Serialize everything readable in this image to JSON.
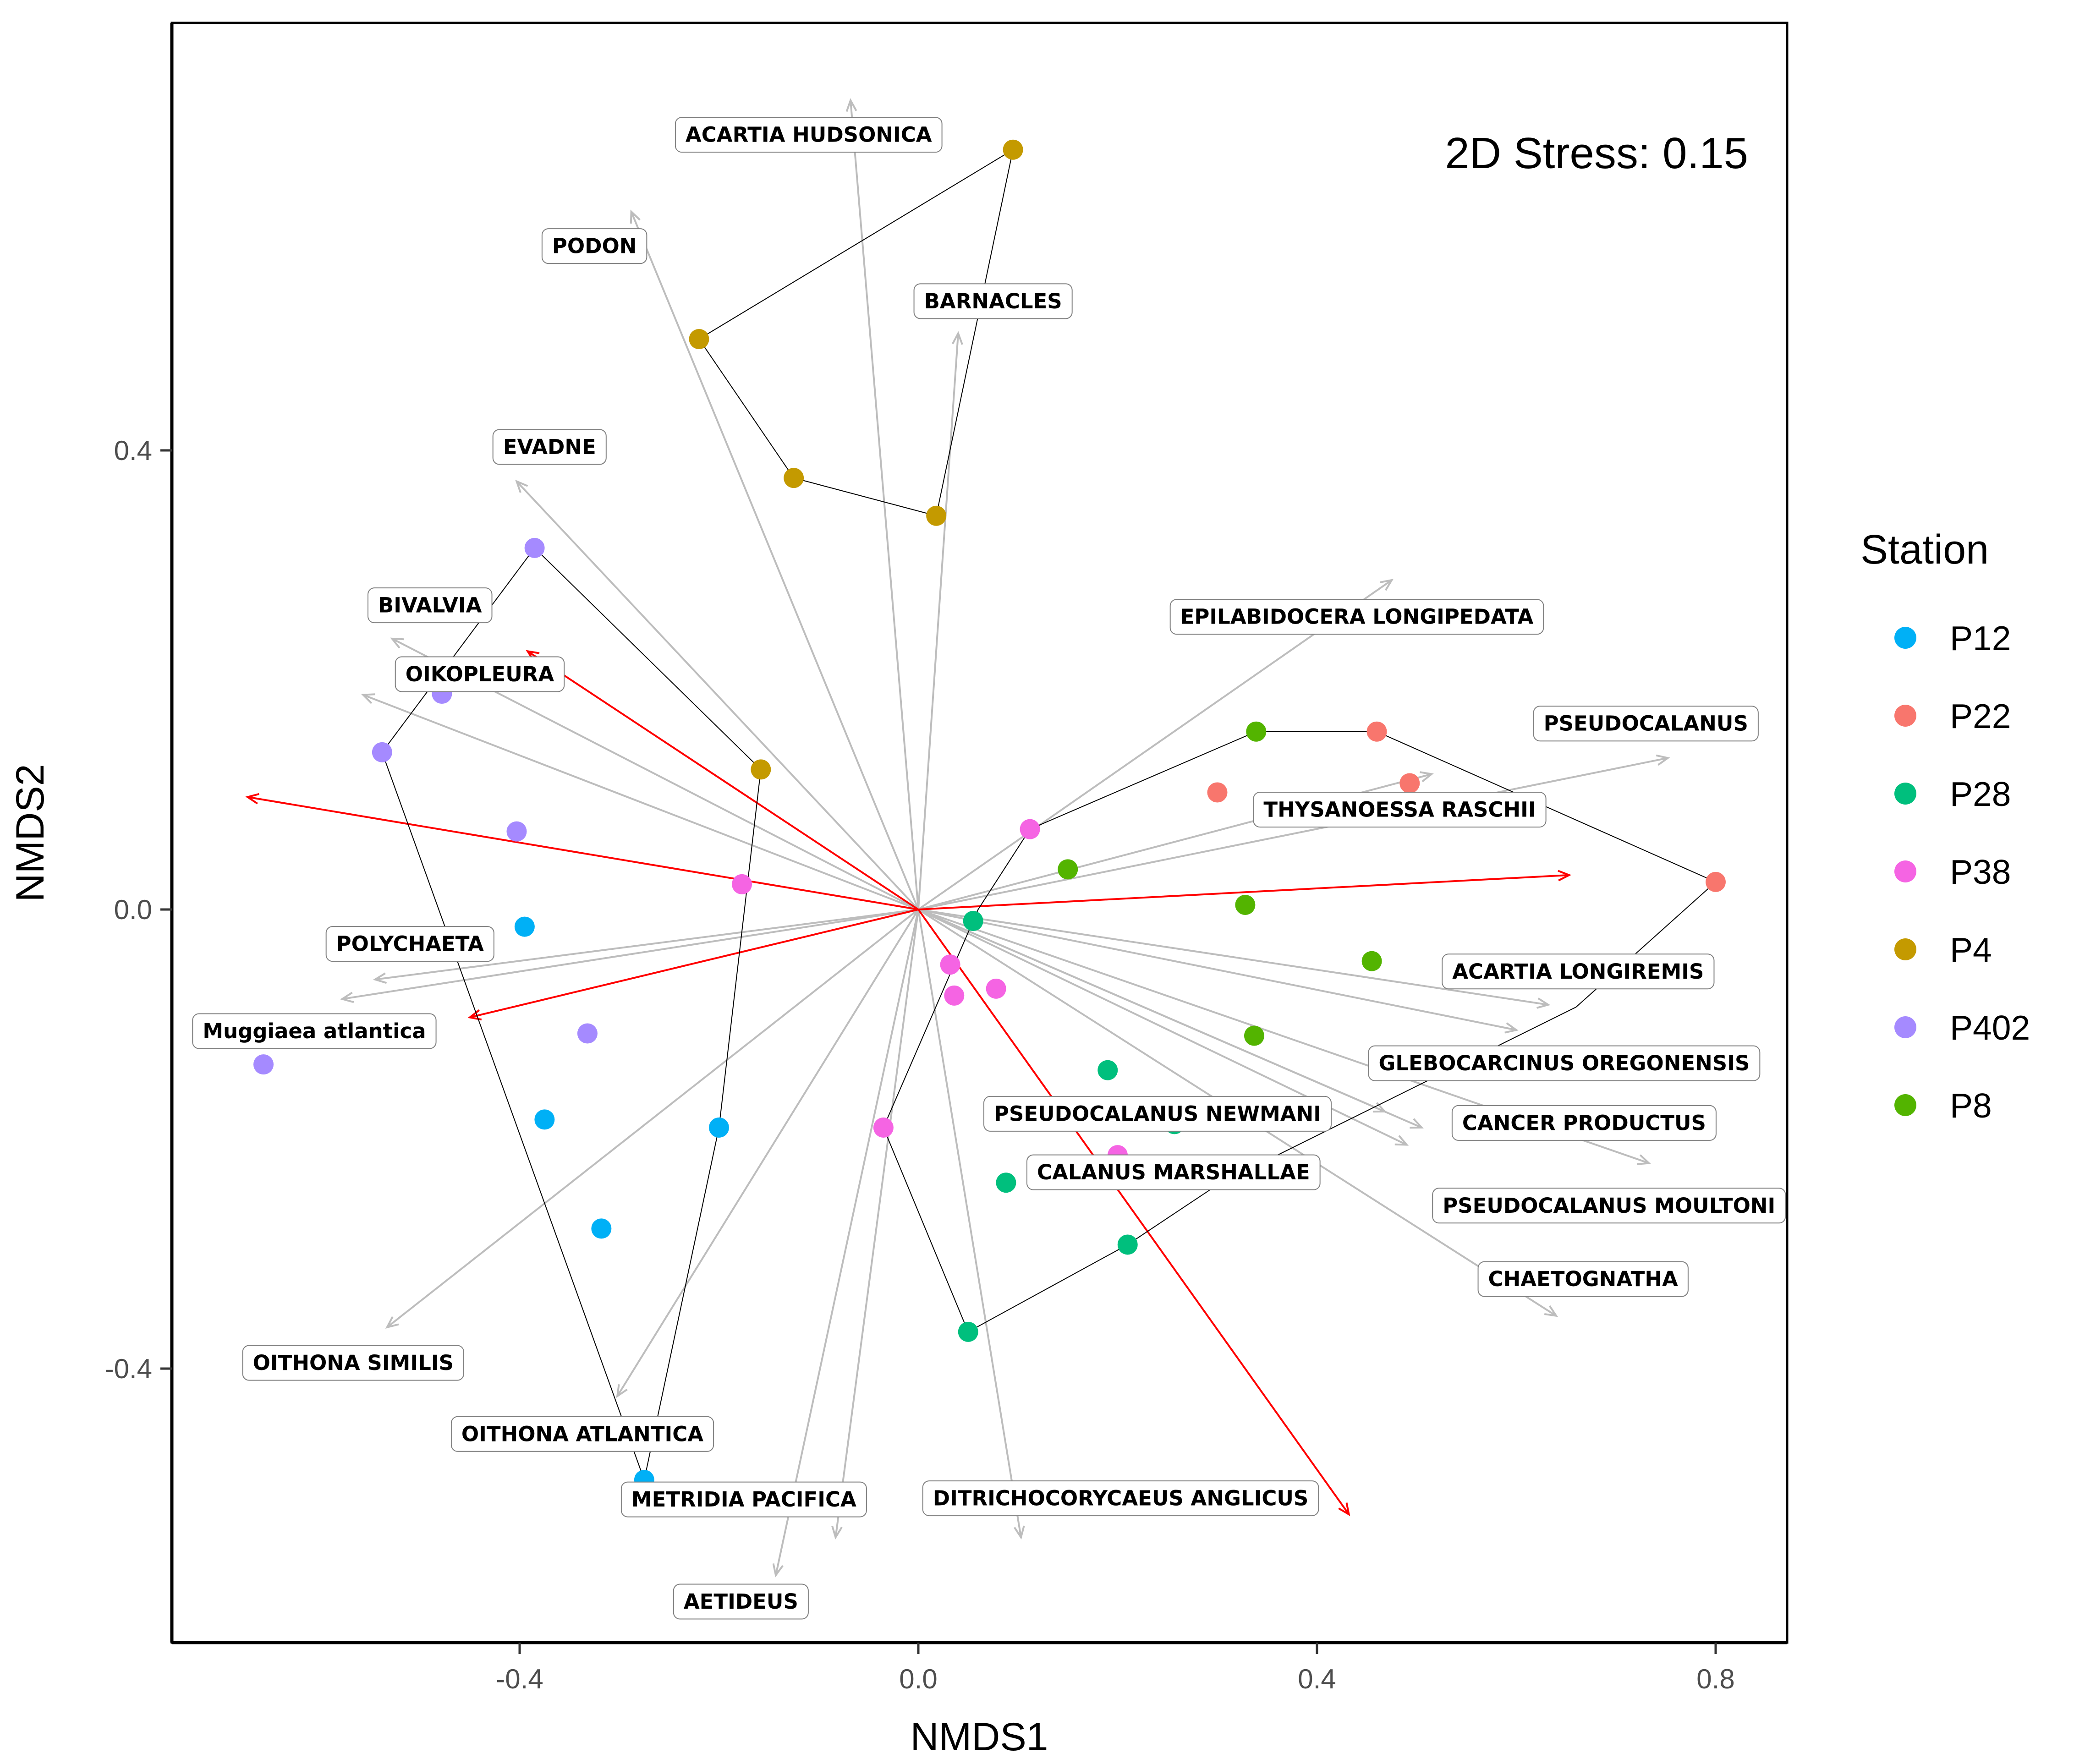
{
  "chart_data": {
    "type": "scatter",
    "title": "",
    "xlabel": "NMDS1",
    "ylabel": "NMDS2",
    "xlim": [
      -0.74,
      0.87
    ],
    "ylim": [
      -0.64,
      0.77
    ],
    "xticks": [
      -0.4,
      0.0,
      0.4,
      0.8
    ],
    "yticks": [
      -0.4,
      0.0,
      0.4
    ],
    "xtick_labels": [
      "-0.4",
      "0.0",
      "0.4",
      "0.8"
    ],
    "ytick_labels": [
      "-0.4",
      "0.0",
      "0.4"
    ],
    "grid": false,
    "annotation": "2D Stress: 0.15",
    "legend": {
      "title": "Station",
      "position": "right"
    },
    "series": [
      {
        "name": "P12",
        "color": "#00B0F6",
        "points": [
          [
            -0.395,
            -0.015
          ],
          [
            -0.375,
            -0.183
          ],
          [
            -0.2,
            -0.19
          ],
          [
            -0.318,
            -0.278
          ],
          [
            -0.275,
            -0.497
          ]
        ],
        "hull": [
          [
            -0.2,
            -0.19
          ],
          [
            -0.275,
            -0.497
          ]
        ]
      },
      {
        "name": "P22",
        "color": "#F8766D",
        "points": [
          [
            0.46,
            0.155
          ],
          [
            0.493,
            0.11
          ],
          [
            0.3,
            0.102
          ],
          [
            0.8,
            0.024
          ]
        ],
        "hull": [
          [
            0.34,
            0.155
          ],
          [
            0.46,
            0.155
          ],
          [
            0.8,
            0.024
          ],
          [
            0.66,
            -0.085
          ]
        ]
      },
      {
        "name": "P28",
        "color": "#00BF7D",
        "points": [
          [
            0.055,
            -0.01
          ],
          [
            0.19,
            -0.14
          ],
          [
            0.257,
            -0.187
          ],
          [
            0.088,
            -0.238
          ],
          [
            0.21,
            -0.292
          ],
          [
            0.05,
            -0.368
          ]
        ],
        "hull": [
          [
            0.05,
            -0.368
          ],
          [
            0.21,
            -0.292
          ],
          [
            0.3,
            -0.24
          ],
          [
            0.66,
            -0.085
          ]
        ]
      },
      {
        "name": "P38",
        "color": "#F564E3",
        "points": [
          [
            0.112,
            0.07
          ],
          [
            -0.177,
            0.022
          ],
          [
            0.032,
            -0.048
          ],
          [
            0.036,
            -0.075
          ],
          [
            0.078,
            -0.069
          ],
          [
            -0.035,
            -0.19
          ],
          [
            0.2,
            -0.214
          ]
        ],
        "hull": [
          [
            0.112,
            0.07
          ],
          [
            0.06,
            0.0
          ],
          [
            -0.035,
            -0.19
          ],
          [
            0.05,
            -0.368
          ]
        ]
      },
      {
        "name": "P4",
        "color": "#C49A00",
        "points": [
          [
            0.095,
            0.662
          ],
          [
            -0.22,
            0.497
          ],
          [
            -0.125,
            0.376
          ],
          [
            0.018,
            0.343
          ],
          [
            -0.158,
            0.122
          ]
        ],
        "hull": [
          [
            -0.22,
            0.497
          ],
          [
            0.095,
            0.662
          ],
          [
            0.018,
            0.343
          ],
          [
            -0.125,
            0.376
          ],
          [
            -0.22,
            0.497
          ]
        ]
      },
      {
        "name": "P402",
        "color": "#A58AFF",
        "points": [
          [
            -0.385,
            0.315
          ],
          [
            -0.478,
            0.188
          ],
          [
            -0.538,
            0.137
          ],
          [
            -0.403,
            0.068
          ],
          [
            -0.332,
            -0.108
          ],
          [
            -0.657,
            -0.135
          ]
        ],
        "hull": [
          [
            -0.538,
            0.137
          ],
          [
            -0.385,
            0.315
          ],
          [
            -0.158,
            0.122
          ],
          [
            -0.2,
            -0.19
          ]
        ]
      },
      {
        "name": "P8",
        "color": "#53B400",
        "points": [
          [
            0.339,
            0.155
          ],
          [
            0.15,
            0.035
          ],
          [
            0.328,
            0.004
          ],
          [
            0.455,
            -0.045
          ],
          [
            0.337,
            -0.11
          ]
        ],
        "hull": [
          [
            0.112,
            0.07
          ],
          [
            0.339,
            0.155
          ],
          [
            0.46,
            0.155
          ]
        ]
      }
    ],
    "hull_extra": [
      [
        [
          -0.538,
          0.137
        ],
        [
          -0.275,
          -0.497
        ]
      ]
    ],
    "vectors_gray": [
      {
        "label": "ACARTIA HUDSONICA",
        "end": [
          -0.068,
          0.705
        ],
        "label_pos": [
          -0.11,
          0.675
        ]
      },
      {
        "label": "PODON",
        "end": [
          -0.288,
          0.608
        ],
        "label_pos": [
          -0.325,
          0.578
        ]
      },
      {
        "label": "BARNACLES",
        "end": [
          0.04,
          0.502
        ],
        "label_pos": [
          0.075,
          0.53
        ]
      },
      {
        "label": "EVADNE",
        "end": [
          -0.403,
          0.373
        ],
        "label_pos": [
          -0.37,
          0.403
        ]
      },
      {
        "label": "BIVALVIA",
        "end": [
          -0.528,
          0.236
        ],
        "label_pos": [
          -0.49,
          0.265
        ]
      },
      {
        "label": "OIKOPLEURA",
        "end": [
          -0.557,
          0.187
        ],
        "label_pos": [
          -0.44,
          0.205
        ]
      },
      {
        "label": "EPILABIDOCERA LONGIPEDATA",
        "end": [
          0.475,
          0.287
        ],
        "label_pos": [
          0.44,
          0.255
        ]
      },
      {
        "label": "PSEUDOCALANUS",
        "end": [
          0.752,
          0.132
        ],
        "label_pos": [
          0.73,
          0.162
        ]
      },
      {
        "label": "THYSANOESSA RASCHII",
        "end": [
          0.515,
          0.118
        ],
        "label_pos": [
          0.483,
          0.087
        ]
      },
      {
        "label": "POLYCHAETA",
        "end": [
          -0.545,
          -0.061
        ],
        "label_pos": [
          -0.51,
          -0.03
        ]
      },
      {
        "label": "Muggiaea atlantica",
        "end": [
          -0.578,
          -0.078
        ],
        "label_pos": [
          -0.606,
          -0.106
        ]
      },
      {
        "label": "ACARTIA LONGIREMIS",
        "end": [
          0.632,
          -0.083
        ],
        "label_pos": [
          0.662,
          -0.054
        ]
      },
      {
        "label": "GLEBOCARCINUS OREGONENSIS",
        "end": [
          0.6,
          -0.105
        ],
        "label_pos": [
          0.648,
          -0.134
        ]
      },
      {
        "label": "CANCER PRODUCTUS",
        "end": [
          0.505,
          -0.19
        ],
        "label_pos": [
          0.668,
          -0.186
        ]
      },
      {
        "label": "PSEUDOCALANUS NEWMANI",
        "end": [
          0.468,
          -0.176
        ],
        "label_pos": [
          0.24,
          -0.178
        ]
      },
      {
        "label": "CALANUS MARSHALLAE",
        "end": [
          0.49,
          -0.205
        ],
        "label_pos": [
          0.256,
          -0.229
        ]
      },
      {
        "label": "PSEUDOCALANUS MOULTONI",
        "end": [
          0.733,
          -0.221
        ],
        "label_pos": [
          0.693,
          -0.258
        ]
      },
      {
        "label": "CHAETOGNATHA",
        "end": [
          0.64,
          -0.354
        ],
        "label_pos": [
          0.667,
          -0.322
        ]
      },
      {
        "label": "OITHONA SIMILIS",
        "end": [
          -0.533,
          -0.364
        ],
        "label_pos": [
          -0.567,
          -0.395
        ]
      },
      {
        "label": "OITHONA ATLANTICA",
        "end": [
          -0.302,
          -0.424
        ],
        "label_pos": [
          -0.337,
          -0.457
        ]
      },
      {
        "label": "METRIDIA PACIFICA",
        "end": [
          -0.083,
          -0.547
        ],
        "label_pos": [
          -0.175,
          -0.514
        ]
      },
      {
        "label": "DITRICHOCORYCAEUS ANGLICUS",
        "end": [
          0.103,
          -0.547
        ],
        "label_pos": [
          0.203,
          -0.513
        ]
      },
      {
        "label": "AETIDEUS",
        "end": [
          -0.143,
          -0.58
        ],
        "label_pos": [
          -0.178,
          -0.603
        ]
      }
    ],
    "vectors_red": [
      {
        "end": [
          -0.392,
          0.225
        ]
      },
      {
        "end": [
          -0.673,
          0.098
        ]
      },
      {
        "end": [
          0.653,
          0.03
        ]
      },
      {
        "end": [
          -0.45,
          -0.094
        ]
      },
      {
        "end": [
          0.432,
          -0.527
        ]
      }
    ]
  }
}
